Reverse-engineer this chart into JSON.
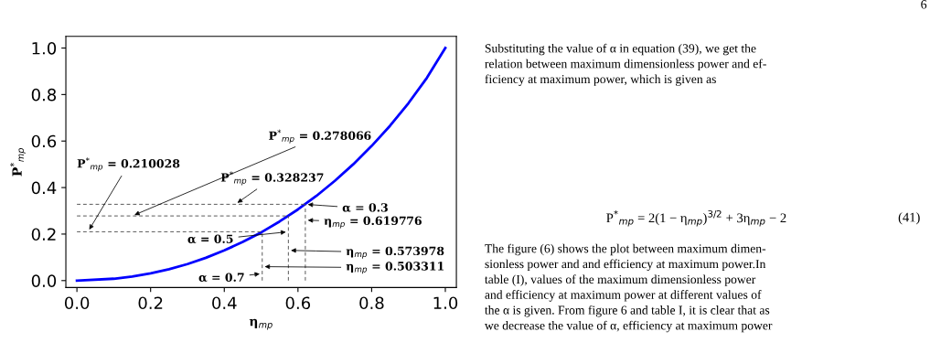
{
  "chart_data": {
    "type": "line",
    "xlabel": "η$_{mp}$",
    "ylabel": "P$^{*}$$_{mp}$",
    "xlim": [
      -0.03,
      1.03
    ],
    "ylim": [
      -0.03,
      1.05
    ],
    "xticks": [
      {
        "value": 0,
        "label": "0.0"
      },
      0.2,
      0.4,
      0.6,
      0.8,
      {
        "value": 1,
        "label": "1.0"
      }
    ],
    "yticks": [
      {
        "value": 0,
        "label": "0.0"
      },
      0.2,
      0.4,
      0.6,
      0.8,
      {
        "value": 1,
        "label": "1.0"
      }
    ],
    "grid": false,
    "marker": "none",
    "series": [
      {
        "color": "#0000ff",
        "line_style": "solid",
        "x": [
          0,
          0.1,
          0.15,
          0.2,
          0.25,
          0.3,
          0.35,
          0.4,
          0.45,
          0.5,
          0.55,
          0.6,
          0.65,
          0.7,
          0.75,
          0.8,
          0.85,
          0.9,
          0.95,
          1.0
        ],
        "values": [
          0,
          0.008,
          0.017,
          0.031,
          0.049,
          0.071,
          0.098,
          0.13,
          0.166,
          0.207,
          0.254,
          0.306,
          0.364,
          0.429,
          0.5,
          0.579,
          0.666,
          0.763,
          0.872,
          1.0
        ]
      },
      {
        "color": "#555555",
        "line_style": "dashed",
        "x": [
          0,
          0.503
        ],
        "values": [
          0.21,
          0.21
        ]
      },
      {
        "color": "#555555",
        "line_style": "dashed",
        "x": [
          0,
          0.574
        ],
        "values": [
          0.278,
          0.278
        ]
      },
      {
        "color": "#555555",
        "line_style": "dashed",
        "x": [
          0,
          0.62
        ],
        "values": [
          0.328,
          0.328
        ]
      },
      {
        "color": "#555555",
        "line_style": "dashed",
        "x": [
          0.503,
          0.503
        ],
        "values": [
          0,
          0.21
        ]
      },
      {
        "color": "#555555",
        "line_style": "dashed",
        "x": [
          0.574,
          0.574
        ],
        "values": [
          0,
          0.278
        ]
      },
      {
        "color": "#555555",
        "line_style": "dashed",
        "x": [
          0.62,
          0.62
        ],
        "values": [
          0,
          0.328
        ]
      }
    ],
    "annotations": [
      {
        "text": "P$^{*}$$_{mp}$ = 0.278066",
        "x": 0.15,
        "y": 0.278
      },
      {
        "text": "P$^{*}$$_{mp}$ = 0.210028",
        "x": 0.03,
        "y": 0.21
      },
      {
        "text": "P$^{*}$$_{mp}$ = 0.328237",
        "x": 0.43,
        "y": 0.328
      },
      {
        "text": "α = 0.3",
        "x": 0.62,
        "y": 0.328
      },
      {
        "text": "η$_{mp}$ = 0.619776",
        "x": 0.62,
        "y": 0.26
      },
      {
        "text": "α = 0.5",
        "x": 0.574,
        "y": 0.21
      },
      {
        "text": "η$_{mp}$ = 0.573978",
        "x": 0.574,
        "y": 0.13
      },
      {
        "text": "α = 0.7",
        "x": 0.503,
        "y": 0.03
      },
      {
        "text": "η$_{mp}$ = 0.503311",
        "x": 0.503,
        "y": 0.06
      },
      "6",
      "Substituting the value of α in equation (39), we get the\nrelation between maximum dimensionless power and ef-\nficiency at maximum power, which is given as",
      "P$^{*}$$_{mp}$ = 2(1 − η$_{mp}$)$^{3/2}$ + 3η$_{mp}$ − 2",
      "(41)",
      "The figure (6) shows the plot between maximum dimen-\nsionless power and and efficiency at maximum power.In\ntable (I), values of the maximum dimensionless power\nand efficiency at maximum power at different values of\nthe α is given. From figure 6 and table I, it is clear that as\nwe decrease the value of α, efficiency at maximum power"
    ]
  }
}
